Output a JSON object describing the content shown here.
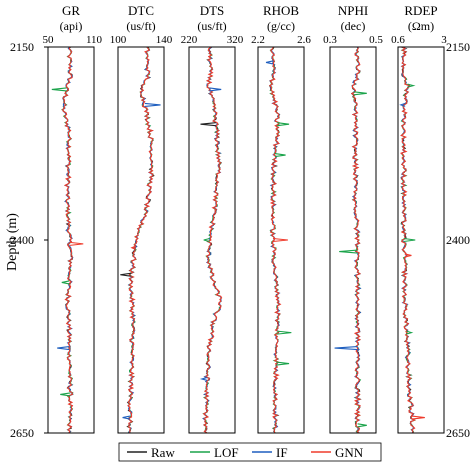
{
  "chart_data": {
    "type": "line",
    "ylabel": "Depth (m)",
    "ylim": [
      2150,
      2650
    ],
    "y_ticks": [
      "2150",
      "2400",
      "2650"
    ],
    "legend_placement": "bottom",
    "tracks": [
      {
        "name": "GR",
        "unit": "(api)",
        "xlim": [
          50,
          110
        ],
        "x_ticks": [
          "50",
          "110"
        ]
      },
      {
        "name": "DTC",
        "unit": "(us/ft)",
        "xlim": [
          100,
          140
        ],
        "x_ticks": [
          "100",
          "140"
        ]
      },
      {
        "name": "DTS",
        "unit": "(us/ft)",
        "xlim": [
          220,
          320
        ],
        "x_ticks": [
          "220",
          "320"
        ]
      },
      {
        "name": "RHOB",
        "unit": "(g/cc)",
        "xlim": [
          2.2,
          2.6
        ],
        "x_ticks": [
          "2.2",
          "2.6"
        ]
      },
      {
        "name": "NPHI",
        "unit": "(dec)",
        "xlim": [
          0.3,
          0.5
        ],
        "x_ticks": [
          "0.3",
          "0.5"
        ]
      },
      {
        "name": "RDEP",
        "unit": "(Ωm)",
        "xlim": [
          0.6,
          3
        ],
        "x_ticks": [
          "0.6",
          "3"
        ]
      }
    ],
    "series": [
      {
        "name": "Raw",
        "color": "#222222"
      },
      {
        "name": "LOF",
        "color": "#1aa34a"
      },
      {
        "name": "IF",
        "color": "#1f5fbf"
      },
      {
        "name": "GNN",
        "color": "#ef3b2c"
      }
    ],
    "profile_depths": [
      2150,
      2190,
      2200,
      2230,
      2260,
      2300,
      2350,
      2400,
      2420,
      2450,
      2480,
      2500,
      2550,
      2600,
      2650
    ],
    "profiles": {
      "GR": [
        78,
        79,
        75,
        70,
        78,
        77,
        75,
        78,
        80,
        78,
        76,
        77,
        78,
        79,
        78
      ],
      "DTC": [
        125,
        126,
        120,
        124,
        128,
        130,
        126,
        116,
        114,
        111,
        112,
        113,
        112,
        111,
        110
      ],
      "DTS": [
        265,
        266,
        262,
        275,
        280,
        285,
        278,
        265,
        262,
        270,
        290,
        275,
        262,
        258,
        255
      ],
      "RHOB": [
        2.32,
        2.34,
        2.31,
        2.36,
        2.37,
        2.34,
        2.33,
        2.33,
        2.34,
        2.35,
        2.38,
        2.37,
        2.36,
        2.35,
        2.35
      ],
      "NPHI": [
        0.42,
        0.42,
        0.4,
        0.41,
        0.41,
        0.41,
        0.41,
        0.42,
        0.42,
        0.42,
        0.42,
        0.42,
        0.42,
        0.42,
        0.42
      ],
      "RDEP": [
        0.9,
        0.9,
        1.1,
        0.95,
        0.9,
        0.9,
        0.9,
        0.9,
        0.95,
        0.95,
        0.95,
        1.0,
        1.1,
        1.2,
        1.4
      ]
    },
    "spikes": [
      {
        "track": "GR",
        "depth": 2205,
        "value": 55,
        "series": "LOF"
      },
      {
        "track": "GR",
        "depth": 2225,
        "value": 70,
        "series": "IF"
      },
      {
        "track": "GR",
        "depth": 2405,
        "value": 96,
        "series": "GNN"
      },
      {
        "track": "GR",
        "depth": 2455,
        "value": 68,
        "series": "LOF"
      },
      {
        "track": "GR",
        "depth": 2540,
        "value": 62,
        "series": "IF"
      },
      {
        "track": "GR",
        "depth": 2600,
        "value": 66,
        "series": "LOF"
      },
      {
        "track": "DTC",
        "depth": 2225,
        "value": 137,
        "series": "IF"
      },
      {
        "track": "DTC",
        "depth": 2410,
        "value": 112,
        "series": "GNN"
      },
      {
        "track": "DTC",
        "depth": 2445,
        "value": 102,
        "series": "Raw"
      },
      {
        "track": "DTC",
        "depth": 2630,
        "value": 104,
        "series": "IF"
      },
      {
        "track": "DTS",
        "depth": 2205,
        "value": 290,
        "series": "IF"
      },
      {
        "track": "DTS",
        "depth": 2250,
        "value": 245,
        "series": "Raw"
      },
      {
        "track": "DTS",
        "depth": 2400,
        "value": 252,
        "series": "LOF"
      },
      {
        "track": "DTS",
        "depth": 2580,
        "value": 248,
        "series": "IF"
      },
      {
        "track": "RHOB",
        "depth": 2170,
        "value": 2.27,
        "series": "IF"
      },
      {
        "track": "RHOB",
        "depth": 2250,
        "value": 2.47,
        "series": "LOF"
      },
      {
        "track": "RHOB",
        "depth": 2290,
        "value": 2.44,
        "series": "LOF"
      },
      {
        "track": "RHOB",
        "depth": 2400,
        "value": 2.46,
        "series": "GNN"
      },
      {
        "track": "RHOB",
        "depth": 2520,
        "value": 2.49,
        "series": "LOF"
      },
      {
        "track": "RHOB",
        "depth": 2560,
        "value": 2.47,
        "series": "LOF"
      },
      {
        "track": "NPHI",
        "depth": 2210,
        "value": 0.46,
        "series": "LOF"
      },
      {
        "track": "NPHI",
        "depth": 2415,
        "value": 0.34,
        "series": "LOF"
      },
      {
        "track": "NPHI",
        "depth": 2540,
        "value": 0.32,
        "series": "IF"
      },
      {
        "track": "NPHI",
        "depth": 2640,
        "value": 0.46,
        "series": "LOF"
      },
      {
        "track": "RDEP",
        "depth": 2200,
        "value": 1.4,
        "series": "LOF"
      },
      {
        "track": "RDEP",
        "depth": 2225,
        "value": 0.75,
        "series": "IF"
      },
      {
        "track": "RDEP",
        "depth": 2400,
        "value": 1.5,
        "series": "LOF"
      },
      {
        "track": "RDEP",
        "depth": 2420,
        "value": 1.3,
        "series": "GNN"
      },
      {
        "track": "RDEP",
        "depth": 2520,
        "value": 1.3,
        "series": "LOF"
      },
      {
        "track": "RDEP",
        "depth": 2630,
        "value": 2.0,
        "series": "GNN"
      }
    ]
  }
}
